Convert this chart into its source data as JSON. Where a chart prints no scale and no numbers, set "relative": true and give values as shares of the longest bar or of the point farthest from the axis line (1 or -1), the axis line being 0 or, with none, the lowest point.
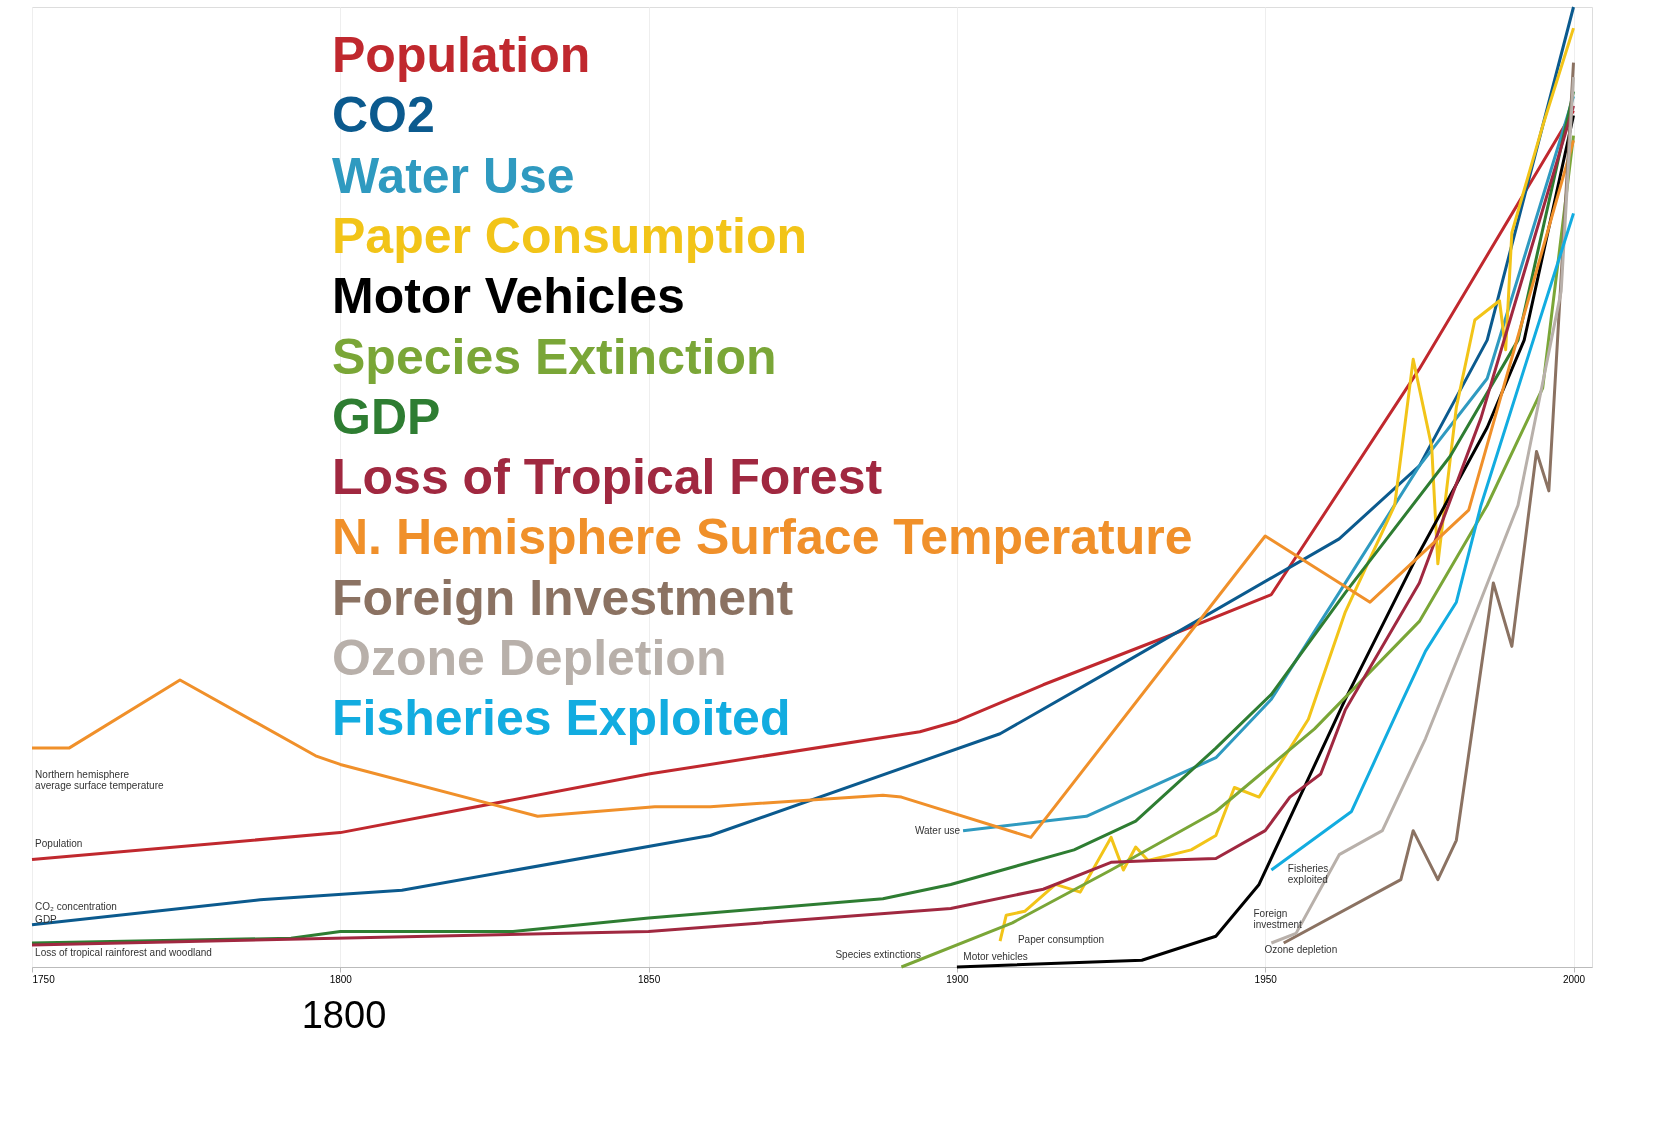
{
  "chart_data": {
    "type": "line",
    "relative": true,
    "xlim": [
      1750,
      2003
    ],
    "xticks": [
      1750,
      1800,
      1850,
      1900,
      1950,
      2000
    ],
    "grid": true,
    "legend": "top left",
    "line_style": "solid",
    "marker": "none",
    "series": [
      {
        "name": "Population",
        "color": "#c0282e",
        "x": [
          1750,
          1800,
          1850,
          1894,
          1900,
          1914,
          1934,
          1951,
          1975,
          2000
        ],
        "values": [
          0.112,
          0.14,
          0.201,
          0.245,
          0.256,
          0.294,
          0.344,
          0.388,
          0.623,
          0.892
        ]
      },
      {
        "name": "CO2",
        "color": "#0b5a8e",
        "x": [
          1750,
          1787,
          1810,
          1860,
          1907,
          1925,
          1962,
          1975,
          1986,
          2000
        ],
        "values": [
          0.044,
          0.07,
          0.08,
          0.137,
          0.243,
          0.309,
          0.446,
          0.522,
          0.653,
          1.0
        ]
      },
      {
        "name": "Water Use",
        "color": "#2f9ac0",
        "x": [
          1901,
          1921,
          1942,
          1951,
          1962,
          1975,
          1986,
          2000
        ],
        "values": [
          0.142,
          0.157,
          0.218,
          0.279,
          0.39,
          0.522,
          0.613,
          0.907
        ]
      },
      {
        "name": "Paper Consumption",
        "color": "#f2c418",
        "x": [
          1907,
          1908,
          1911,
          1916,
          1920,
          1925,
          1927,
          1929,
          1931,
          1938,
          1942,
          1945,
          1949,
          1957,
          1963,
          1971,
          1974,
          1977,
          1978,
          1981,
          1984,
          1988,
          1989,
          1990,
          1995,
          2000
        ],
        "values": [
          0.027,
          0.054,
          0.058,
          0.086,
          0.078,
          0.135,
          0.101,
          0.125,
          0.111,
          0.122,
          0.137,
          0.187,
          0.177,
          0.258,
          0.37,
          0.481,
          0.633,
          0.542,
          0.42,
          0.583,
          0.674,
          0.694,
          0.643,
          0.765,
          0.876,
          0.978
        ]
      },
      {
        "name": "Motor Vehicles",
        "color": "#000000",
        "x": [
          1900,
          1930,
          1942,
          1949,
          1963,
          1974,
          1986,
          1992,
          2000
        ],
        "values": [
          0.0,
          0.007,
          0.032,
          0.086,
          0.279,
          0.42,
          0.562,
          0.653,
          0.887
        ]
      },
      {
        "name": "Species Extinction",
        "color": "#7aa637",
        "x": [
          1891,
          1909,
          1925,
          1942,
          1958,
          1975,
          1986,
          1995,
          2000
        ],
        "values": [
          0.0,
          0.046,
          0.101,
          0.162,
          0.248,
          0.36,
          0.481,
          0.603,
          0.866
        ]
      },
      {
        "name": "GDP",
        "color": "#2e7d32",
        "x": [
          1750,
          1792,
          1800,
          1828,
          1850,
          1888,
          1899,
          1919,
          1929,
          1942,
          1951,
          1963,
          1980,
          1991,
          2000
        ],
        "values": [
          0.025,
          0.03,
          0.037,
          0.037,
          0.051,
          0.071,
          0.086,
          0.122,
          0.152,
          0.228,
          0.284,
          0.39,
          0.532,
          0.653,
          0.912
        ]
      },
      {
        "name": "Loss of Tropical Forest",
        "color": "#a02840",
        "x": [
          1750,
          1850,
          1899,
          1914,
          1925,
          1932,
          1942,
          1950,
          1954,
          1959,
          1963,
          1975,
          1985,
          2000
        ],
        "values": [
          0.023,
          0.037,
          0.061,
          0.081,
          0.109,
          0.111,
          0.113,
          0.142,
          0.177,
          0.201,
          0.268,
          0.4,
          0.572,
          0.897
        ]
      },
      {
        "name": "N. Hemisphere Surface Temperature",
        "color": "#f0902a",
        "x": [
          1750,
          1756,
          1774,
          1796,
          1800,
          1832,
          1851,
          1860,
          1888,
          1891,
          1912,
          1950,
          1967,
          1983,
          2000
        ],
        "values": [
          0.228,
          0.228,
          0.299,
          0.22,
          0.211,
          0.157,
          0.167,
          0.167,
          0.179,
          0.177,
          0.135,
          0.449,
          0.38,
          0.476,
          0.861
        ]
      },
      {
        "name": "Foreign Investment",
        "color": "#8b7262",
        "x": [
          1953,
          1972,
          1974,
          1978,
          1981,
          1987,
          1990,
          1994,
          1996,
          2000
        ],
        "values": [
          0.025,
          0.091,
          0.142,
          0.091,
          0.132,
          0.4,
          0.334,
          0.537,
          0.496,
          0.942
        ]
      },
      {
        "name": "Ozone Depletion",
        "color": "#b8b0aa",
        "x": [
          1951,
          1955,
          1962,
          1969,
          1976,
          1983,
          1991,
          1998,
          2000
        ],
        "values": [
          0.025,
          0.035,
          0.117,
          0.142,
          0.238,
          0.35,
          0.481,
          0.704,
          0.927
        ]
      },
      {
        "name": "Fisheries Exploited",
        "color": "#12ace0",
        "x": [
          1951,
          1964,
          1968,
          1972,
          1976,
          1981,
          1985,
          1992,
          2000
        ],
        "values": [
          0.101,
          0.162,
          0.218,
          0.274,
          0.329,
          0.38,
          0.481,
          0.623,
          0.785
        ]
      }
    ],
    "annotations": [
      "Northern hemisphere\naverage surface temperature",
      "Population",
      "CO₂ concentration",
      "GDP",
      "Loss of tropical rainforest and woodland",
      "Water use",
      "Species extinctions",
      "Motor vehicles",
      "Paper consumption",
      "Fisheries\nexploited",
      "Foreign\ninvestment",
      "Ozone depletion",
      "1800"
    ]
  }
}
